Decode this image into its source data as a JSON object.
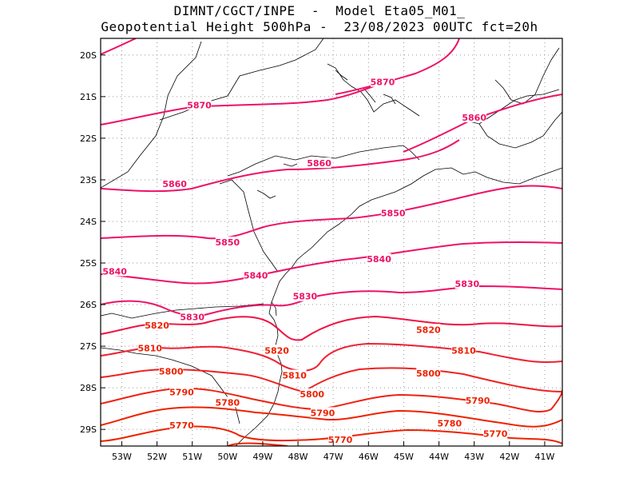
{
  "title": {
    "line1": "DIMNT/CGCT/INPE  -  Model Eta05_M01_",
    "line2": "Geopotential Height 500hPa -  23/08/2023 00UTC fct=20h"
  },
  "axes": {
    "x_ticks": [
      "53W",
      "52W",
      "51W",
      "50W",
      "49W",
      "48W",
      "47W",
      "46W",
      "45W",
      "44W",
      "43W",
      "42W",
      "41W"
    ],
    "y_ticks": [
      "20S",
      "21S",
      "22S",
      "23S",
      "24S",
      "25S",
      "26S",
      "27S",
      "28S",
      "29S"
    ]
  },
  "contour_labels": [
    {
      "text": "5870",
      "lon": -45.6,
      "lat": -20.65
    },
    {
      "text": "5870",
      "lon": -50.8,
      "lat": -21.2
    },
    {
      "text": "5860",
      "lon": -43.0,
      "lat": -21.5
    },
    {
      "text": "5860",
      "lon": -47.4,
      "lat": -22.6
    },
    {
      "text": "5860",
      "lon": -51.5,
      "lat": -23.1
    },
    {
      "text": "5850",
      "lon": -45.3,
      "lat": -23.8
    },
    {
      "text": "5850",
      "lon": -50.0,
      "lat": -24.5
    },
    {
      "text": "5840",
      "lon": -45.7,
      "lat": -24.9
    },
    {
      "text": "5840",
      "lon": -53.2,
      "lat": -25.2
    },
    {
      "text": "5840",
      "lon": -49.2,
      "lat": -25.3
    },
    {
      "text": "5830",
      "lon": -43.2,
      "lat": -25.5
    },
    {
      "text": "5830",
      "lon": -47.8,
      "lat": -25.8
    },
    {
      "text": "5830",
      "lon": -51.0,
      "lat": -26.3
    },
    {
      "text": "5820",
      "lon": -52.0,
      "lat": -26.5
    },
    {
      "text": "5820",
      "lon": -44.3,
      "lat": -26.6
    },
    {
      "text": "5820",
      "lon": -48.6,
      "lat": -27.1
    },
    {
      "text": "5810",
      "lon": -52.2,
      "lat": -27.05
    },
    {
      "text": "5810",
      "lon": -43.3,
      "lat": -27.1
    },
    {
      "text": "5810",
      "lon": -48.1,
      "lat": -27.7
    },
    {
      "text": "5800",
      "lon": -51.6,
      "lat": -27.6
    },
    {
      "text": "5800",
      "lon": -44.3,
      "lat": -27.65
    },
    {
      "text": "5800",
      "lon": -47.6,
      "lat": -28.15
    },
    {
      "text": "5790",
      "lon": -51.3,
      "lat": -28.1
    },
    {
      "text": "5790",
      "lon": -42.9,
      "lat": -28.3
    },
    {
      "text": "5790",
      "lon": -47.3,
      "lat": -28.6
    },
    {
      "text": "5780",
      "lon": -50.0,
      "lat": -28.35
    },
    {
      "text": "5780",
      "lon": -43.7,
      "lat": -28.85
    },
    {
      "text": "5770",
      "lon": -51.3,
      "lat": -28.9
    },
    {
      "text": "5770",
      "lon": -42.4,
      "lat": -29.1
    },
    {
      "text": "5770",
      "lon": -46.8,
      "lat": -29.25
    }
  ],
  "colors": {
    "frame": "#000000",
    "grid": "#999999",
    "coast": "#000000",
    "high_contour": "#ee1166",
    "low_contour": "#ee2200"
  }
}
